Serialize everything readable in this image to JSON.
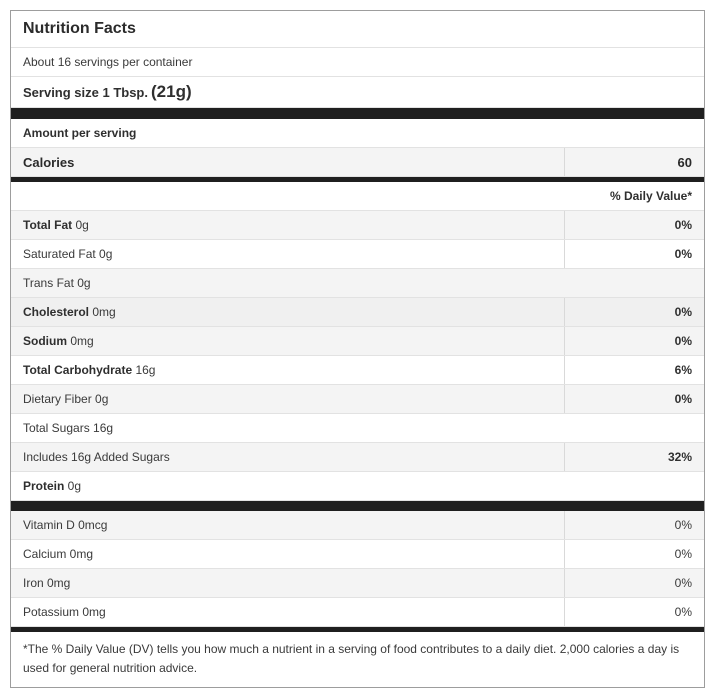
{
  "label": {
    "title": "Nutrition Facts",
    "servings_per_container": "About 16 servings per container",
    "serving_size_label": "Serving size 1 Tbsp.",
    "serving_size_weight": "(21g)",
    "amount_per_serving": "Amount per serving",
    "calories_label": "Calories",
    "calories_value": "60",
    "daily_value_header": "% Daily Value*",
    "footnote": "*The % Daily Value (DV) tells you how much a nutrient in a serving of food contributes to a daily diet. 2,000 calories a day is used for general nutrition advice."
  },
  "nutrients": [
    {
      "bold": "Total Fat",
      "rest": " 0g",
      "value": "0%"
    },
    {
      "bold": "",
      "rest": "Saturated Fat 0g",
      "value": "0%"
    },
    {
      "bold": "",
      "rest": "Trans Fat 0g",
      "value": ""
    },
    {
      "bold": "Cholesterol",
      "rest": " 0mg",
      "value": "0%"
    },
    {
      "bold": "Sodium",
      "rest": " 0mg",
      "value": "0%"
    },
    {
      "bold": "Total Carbohydrate",
      "rest": " 16g",
      "value": "6%"
    },
    {
      "bold": "",
      "rest": "Dietary Fiber 0g",
      "value": "0%"
    },
    {
      "bold": "",
      "rest": "Total Sugars 16g",
      "value": ""
    },
    {
      "bold": "",
      "rest": "Includes 16g Added Sugars",
      "value": "32%"
    },
    {
      "bold": "Protein",
      "rest": " 0g",
      "value": ""
    }
  ],
  "vitamins": [
    {
      "label": "Vitamin D 0mcg",
      "value": "0%"
    },
    {
      "label": "Calcium 0mg",
      "value": "0%"
    },
    {
      "label": "Iron 0mg",
      "value": "0%"
    },
    {
      "label": "Potassium 0mg",
      "value": "0%"
    }
  ],
  "colors": {
    "bar": "#1f1f1f",
    "shaded_row": "#f4f4f4",
    "row_border": "#e2e2e2",
    "outer_border": "#9d9d9d",
    "text": "#3a3a3a"
  }
}
